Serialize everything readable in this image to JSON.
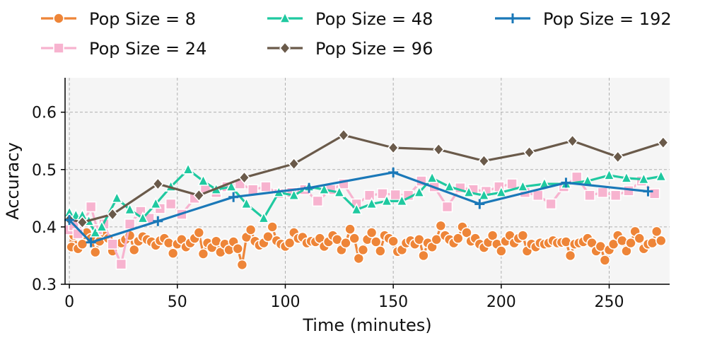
{
  "chart_data": {
    "type": "line",
    "title": "",
    "xlabel": "Time (minutes)",
    "ylabel": "Accuracy",
    "xlim": [
      -2,
      278
    ],
    "ylim": [
      0.3,
      0.66
    ],
    "xticks": [
      0,
      50,
      100,
      150,
      200,
      250
    ],
    "yticks": [
      0.3,
      0.4,
      0.5,
      0.6
    ],
    "xtick_labels": [
      "0",
      "50",
      "100",
      "150",
      "200",
      "250"
    ],
    "ytick_labels": [
      "0.3",
      "0.4",
      "0.5",
      "0.6"
    ],
    "grid": true,
    "legend_position": "top",
    "series": [
      {
        "name": "Pop Size = 8",
        "label": "Pop Size = 8",
        "color": "#ee8538",
        "marker": "circle",
        "x": [
          0,
          1,
          2,
          4,
          6,
          8,
          10,
          12,
          14,
          16,
          18,
          20,
          22,
          24,
          26,
          28,
          30,
          32,
          34,
          36,
          38,
          40,
          42,
          44,
          46,
          48,
          50,
          52,
          54,
          56,
          58,
          60,
          62,
          64,
          66,
          68,
          70,
          72,
          74,
          76,
          78,
          80,
          82,
          84,
          86,
          88,
          90,
          92,
          94,
          96,
          98,
          100,
          102,
          104,
          106,
          108,
          110,
          112,
          114,
          116,
          118,
          120,
          122,
          124,
          126,
          128,
          130,
          132,
          134,
          136,
          138,
          140,
          142,
          144,
          146,
          148,
          150,
          152,
          154,
          156,
          158,
          160,
          162,
          164,
          166,
          168,
          170,
          172,
          174,
          176,
          178,
          180,
          182,
          184,
          186,
          188,
          190,
          192,
          194,
          196,
          198,
          200,
          202,
          204,
          206,
          208,
          210,
          212,
          214,
          216,
          218,
          220,
          222,
          224,
          226,
          228,
          230,
          232,
          234,
          236,
          238,
          240,
          242,
          244,
          246,
          248,
          250,
          252,
          254,
          256,
          258,
          260,
          262,
          264,
          266,
          268,
          270,
          272,
          274
        ],
        "y": [
          0.395,
          0.365,
          0.385,
          0.362,
          0.37,
          0.39,
          0.38,
          0.356,
          0.375,
          0.39,
          0.38,
          0.358,
          0.37,
          0.372,
          0.378,
          0.385,
          0.36,
          0.375,
          0.383,
          0.378,
          0.374,
          0.368,
          0.376,
          0.38,
          0.372,
          0.354,
          0.37,
          0.378,
          0.365,
          0.372,
          0.38,
          0.39,
          0.353,
          0.372,
          0.364,
          0.375,
          0.356,
          0.37,
          0.36,
          0.374,
          0.362,
          0.334,
          0.382,
          0.395,
          0.375,
          0.368,
          0.372,
          0.383,
          0.4,
          0.376,
          0.37,
          0.366,
          0.372,
          0.39,
          0.38,
          0.382,
          0.372,
          0.375,
          0.374,
          0.38,
          0.366,
          0.374,
          0.385,
          0.378,
          0.36,
          0.372,
          0.396,
          0.38,
          0.345,
          0.36,
          0.378,
          0.39,
          0.374,
          0.358,
          0.385,
          0.38,
          0.375,
          0.357,
          0.36,
          0.372,
          0.376,
          0.37,
          0.378,
          0.35,
          0.372,
          0.365,
          0.378,
          0.402,
          0.385,
          0.378,
          0.372,
          0.38,
          0.4,
          0.39,
          0.375,
          0.38,
          0.37,
          0.364,
          0.373,
          0.385,
          0.37,
          0.358,
          0.375,
          0.385,
          0.372,
          0.38,
          0.385,
          0.358,
          0.37,
          0.365,
          0.372,
          0.37,
          0.372,
          0.376,
          0.372,
          0.373,
          0.374,
          0.35,
          0.37,
          0.372,
          0.374,
          0.38,
          0.372,
          0.358,
          0.366,
          0.342,
          0.36,
          0.37,
          0.385,
          0.376,
          0.358,
          0.372,
          0.392,
          0.38,
          0.362,
          0.37,
          0.372,
          0.392,
          0.376
        ]
      },
      {
        "name": "Pop Size = 24",
        "label": "Pop Size = 24",
        "color": "#f7b3cf",
        "marker": "square",
        "x": [
          0,
          2,
          4,
          7,
          10,
          13,
          16,
          20,
          24,
          28,
          33,
          37,
          42,
          47,
          52,
          58,
          63,
          68,
          73,
          79,
          85,
          91,
          97,
          103,
          109,
          115,
          121,
          127,
          133,
          139,
          145,
          151,
          157,
          163,
          169,
          175,
          181,
          187,
          193,
          199,
          205,
          211,
          217,
          223,
          229,
          235,
          241,
          247,
          253,
          259,
          265,
          271
        ],
        "y": [
          0.395,
          0.402,
          0.388,
          0.41,
          0.435,
          0.395,
          0.405,
          0.37,
          0.335,
          0.405,
          0.427,
          0.415,
          0.432,
          0.44,
          0.422,
          0.45,
          0.468,
          0.46,
          0.47,
          0.475,
          0.465,
          0.47,
          0.458,
          0.46,
          0.465,
          0.445,
          0.465,
          0.475,
          0.44,
          0.455,
          0.458,
          0.456,
          0.455,
          0.48,
          0.47,
          0.435,
          0.468,
          0.465,
          0.462,
          0.47,
          0.475,
          0.46,
          0.455,
          0.44,
          0.47,
          0.487,
          0.455,
          0.46,
          0.455,
          0.463,
          0.48,
          0.458
        ]
      },
      {
        "name": "Pop Size = 48",
        "label": "Pop Size = 48",
        "color": "#1fc9a0",
        "marker": "triangle",
        "x": [
          0,
          3,
          6,
          9,
          12,
          15,
          22,
          28,
          34,
          40,
          47,
          55,
          62,
          68,
          75,
          82,
          90,
          97,
          104,
          111,
          118,
          125,
          133,
          140,
          147,
          154,
          162,
          168,
          176,
          185,
          192,
          200,
          210,
          220,
          230,
          240,
          250,
          258,
          266,
          274
        ],
        "y": [
          0.425,
          0.42,
          0.42,
          0.41,
          0.39,
          0.4,
          0.45,
          0.43,
          0.415,
          0.44,
          0.47,
          0.5,
          0.48,
          0.465,
          0.47,
          0.44,
          0.415,
          0.46,
          0.455,
          0.47,
          0.465,
          0.46,
          0.43,
          0.44,
          0.445,
          0.445,
          0.46,
          0.485,
          0.47,
          0.46,
          0.455,
          0.46,
          0.47,
          0.475,
          0.475,
          0.48,
          0.49,
          0.485,
          0.483,
          0.488
        ]
      },
      {
        "name": "Pop Size = 96",
        "label": "Pop Size = 96",
        "color": "#6a5a4a",
        "marker": "diamond",
        "x": [
          0,
          6,
          20,
          41,
          60,
          81,
          104,
          127,
          150,
          171,
          192,
          213,
          233,
          254,
          275
        ],
        "y": [
          0.413,
          0.408,
          0.422,
          0.475,
          0.455,
          0.486,
          0.51,
          0.56,
          0.538,
          0.535,
          0.515,
          0.53,
          0.55,
          0.522,
          0.547
        ]
      },
      {
        "name": "Pop Size = 192",
        "label": "Pop Size = 192",
        "color": "#1a78b8",
        "marker": "plus",
        "x": [
          0,
          10,
          41,
          76,
          111,
          150,
          190,
          230,
          268
        ],
        "y": [
          0.412,
          0.373,
          0.41,
          0.452,
          0.468,
          0.495,
          0.44,
          0.477,
          0.462
        ]
      }
    ]
  }
}
